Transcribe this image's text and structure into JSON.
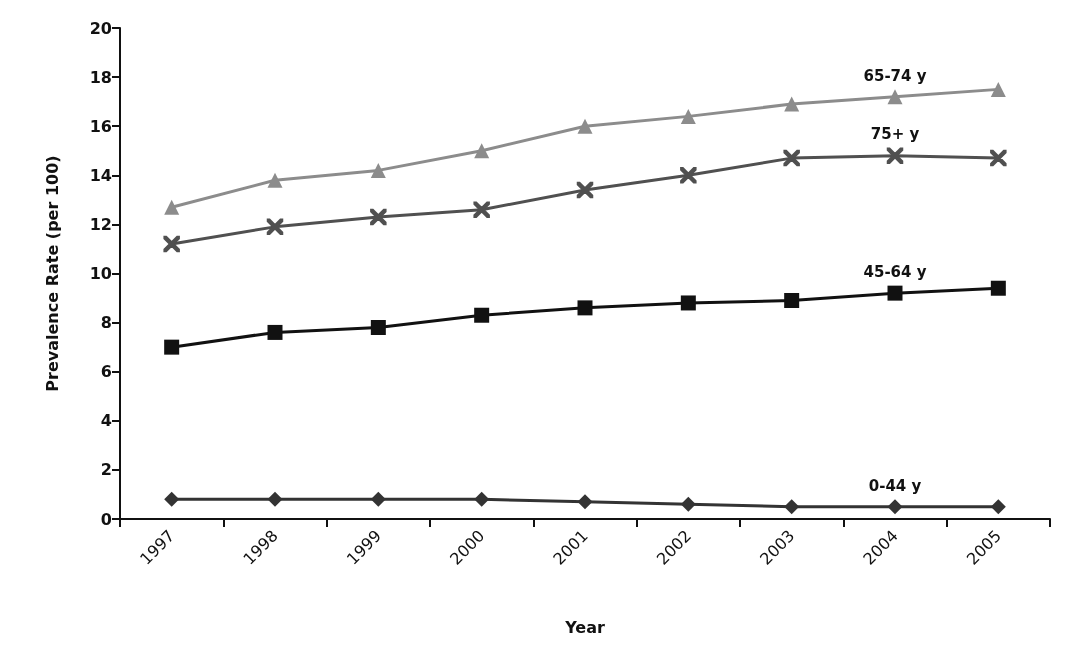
{
  "chart_data": {
    "type": "line",
    "xlabel": "Year",
    "ylabel": "Prevalence Rate (per 100)",
    "categories": [
      "1997",
      "1998",
      "1999",
      "2000",
      "2001",
      "2002",
      "2003",
      "2004",
      "2005"
    ],
    "series": [
      {
        "name": "65-74 y",
        "color": "#8c8c8c",
        "marker": "triangle",
        "values": [
          12.7,
          13.8,
          14.2,
          15.0,
          16.0,
          16.4,
          16.9,
          17.2,
          17.5
        ]
      },
      {
        "name": "75+ y",
        "color": "#505050",
        "marker": "cross",
        "values": [
          11.2,
          11.9,
          12.3,
          12.6,
          13.4,
          14.0,
          14.7,
          14.8,
          14.7
        ]
      },
      {
        "name": "45-64 y",
        "color": "#111111",
        "marker": "square",
        "values": [
          7.0,
          7.6,
          7.8,
          8.3,
          8.6,
          8.8,
          8.9,
          9.2,
          9.4
        ]
      },
      {
        "name": "0-44 y",
        "color": "#333333",
        "marker": "diamond",
        "values": [
          0.8,
          0.8,
          0.8,
          0.8,
          0.7,
          0.6,
          0.5,
          0.5,
          0.5
        ]
      }
    ],
    "ylim": [
      0,
      20
    ],
    "yticks": [
      0,
      2,
      4,
      6,
      8,
      10,
      12,
      14,
      16,
      18,
      20
    ],
    "grid": false,
    "legend": false,
    "line_style": "solid"
  }
}
